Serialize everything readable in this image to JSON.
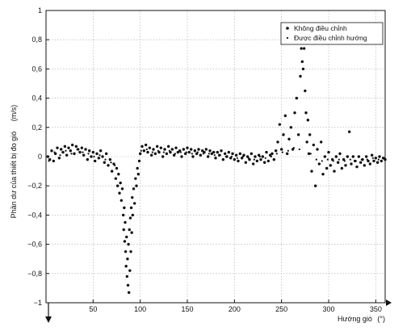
{
  "chart_data": {
    "type": "scatter",
    "xlabel": "Hướng gió",
    "xunit": "(°)",
    "ylabel": "Phần dư của thiết bị đo gió",
    "yunit": "(m/s)",
    "xlim": [
      0,
      360
    ],
    "ylim": [
      -1,
      1
    ],
    "xticks": [
      50,
      100,
      150,
      200,
      250,
      300,
      350
    ],
    "xtick_labels": [
      "50",
      "100",
      "150",
      "200",
      "250",
      "300",
      "350"
    ],
    "yticks": [
      -1,
      -0.8,
      -0.6,
      -0.4,
      -0.2,
      0,
      0.2,
      0.4,
      0.6,
      0.8,
      1
    ],
    "ytick_labels": [
      "−1",
      "−0,8",
      "−0,6",
      "−0,4",
      "−0,2",
      "0",
      "0,2",
      "0,4",
      "0,6",
      "0,8",
      "1"
    ],
    "grid": true,
    "legend_position": "top-right",
    "colors": {
      "points": "#111111",
      "grid": "#aaaaaa",
      "axes": "#111111"
    },
    "series": [
      {
        "name": "Không điều chỉnh",
        "marker": "dot",
        "points": [
          [
            2,
            0.0
          ],
          [
            4,
            -0.02
          ],
          [
            6,
            0.04
          ],
          [
            8,
            -0.03
          ],
          [
            10,
            0.02
          ],
          [
            12,
            0.06
          ],
          [
            14,
            -0.01
          ],
          [
            16,
            0.05
          ],
          [
            18,
            0.03
          ],
          [
            20,
            0.07
          ],
          [
            22,
            0.01
          ],
          [
            24,
            0.06
          ],
          [
            26,
            0.04
          ],
          [
            28,
            0.08
          ],
          [
            30,
            0.02
          ],
          [
            32,
            0.07
          ],
          [
            34,
            0.05
          ],
          [
            36,
            0.03
          ],
          [
            38,
            0.06
          ],
          [
            40,
            0.01
          ],
          [
            42,
            0.05
          ],
          [
            44,
            -0.02
          ],
          [
            46,
            0.04
          ],
          [
            48,
            0.0
          ],
          [
            50,
            0.03
          ],
          [
            52,
            -0.03
          ],
          [
            54,
            0.02
          ],
          [
            56,
            -0.01
          ],
          [
            58,
            0.04
          ],
          [
            60,
            0.0
          ],
          [
            62,
            -0.04
          ],
          [
            64,
            0.02
          ],
          [
            66,
            -0.06
          ],
          [
            68,
            -0.02
          ],
          [
            70,
            -0.1
          ],
          [
            72,
            -0.05
          ],
          [
            74,
            -0.15
          ],
          [
            75,
            -0.08
          ],
          [
            76,
            -0.2
          ],
          [
            77,
            -0.12
          ],
          [
            78,
            -0.25
          ],
          [
            79,
            -0.18
          ],
          [
            80,
            -0.3
          ],
          [
            81,
            -0.22
          ],
          [
            82,
            -0.4
          ],
          [
            82.5,
            -0.5
          ],
          [
            83,
            -0.35
          ],
          [
            83.5,
            -0.58
          ],
          [
            84,
            -0.45
          ],
          [
            84.5,
            -0.65
          ],
          [
            85,
            -0.75
          ],
          [
            85.5,
            -0.55
          ],
          [
            86,
            -0.82
          ],
          [
            86.5,
            -0.7
          ],
          [
            87,
            -0.88
          ],
          [
            87.5,
            -0.6
          ],
          [
            88,
            -0.93
          ],
          [
            88.5,
            -0.5
          ],
          [
            89,
            -0.78
          ],
          [
            89.5,
            -0.42
          ],
          [
            90,
            -0.65
          ],
          [
            90.5,
            -0.35
          ],
          [
            91,
            -0.52
          ],
          [
            91.5,
            -0.28
          ],
          [
            92,
            -0.4
          ],
          [
            93,
            -0.22
          ],
          [
            94,
            -0.32
          ],
          [
            95,
            -0.15
          ],
          [
            96,
            -0.2
          ],
          [
            97,
            -0.08
          ],
          [
            98,
            -0.12
          ],
          [
            99,
            -0.03
          ],
          [
            100,
            0.02
          ],
          [
            102,
            0.07
          ],
          [
            104,
            0.04
          ],
          [
            106,
            0.08
          ],
          [
            108,
            0.03
          ],
          [
            110,
            0.06
          ],
          [
            112,
            0.01
          ],
          [
            114,
            0.05
          ],
          [
            116,
            0.02
          ],
          [
            118,
            0.07
          ],
          [
            120,
            0.03
          ],
          [
            122,
            0.06
          ],
          [
            124,
            0.0
          ],
          [
            126,
            0.05
          ],
          [
            128,
            0.02
          ],
          [
            130,
            0.07
          ],
          [
            132,
            0.03
          ],
          [
            134,
            0.05
          ],
          [
            136,
            0.01
          ],
          [
            138,
            0.06
          ],
          [
            140,
            0.03
          ],
          [
            142,
            0.04
          ],
          [
            144,
            0.0
          ],
          [
            146,
            0.05
          ],
          [
            148,
            0.02
          ],
          [
            150,
            0.06
          ],
          [
            152,
            0.03
          ],
          [
            154,
            0.05
          ],
          [
            156,
            0.0
          ],
          [
            158,
            0.04
          ],
          [
            160,
            0.02
          ],
          [
            162,
            0.05
          ],
          [
            164,
            0.01
          ],
          [
            166,
            0.04
          ],
          [
            168,
            0.03
          ],
          [
            170,
            0.05
          ],
          [
            172,
            0.0
          ],
          [
            174,
            0.04
          ],
          [
            176,
            0.02
          ],
          [
            178,
            0.03
          ],
          [
            180,
            -0.01
          ],
          [
            182,
            0.03
          ],
          [
            184,
            0.01
          ],
          [
            186,
            0.04
          ],
          [
            188,
            -0.02
          ],
          [
            190,
            0.02
          ],
          [
            192,
            0.0
          ],
          [
            194,
            0.03
          ],
          [
            196,
            -0.01
          ],
          [
            198,
            0.02
          ],
          [
            200,
            -0.02
          ],
          [
            202,
            0.01
          ],
          [
            204,
            -0.03
          ],
          [
            206,
            0.02
          ],
          [
            208,
            -0.01
          ],
          [
            210,
            0.01
          ],
          [
            212,
            -0.04
          ],
          [
            214,
            0.0
          ],
          [
            216,
            -0.02
          ],
          [
            218,
            0.02
          ],
          [
            220,
            -0.05
          ],
          [
            222,
            0.0
          ],
          [
            224,
            -0.03
          ],
          [
            226,
            0.01
          ],
          [
            228,
            -0.02
          ],
          [
            230,
            0.0
          ],
          [
            232,
            -0.04
          ],
          [
            234,
            0.03
          ],
          [
            236,
            -0.03
          ],
          [
            238,
            0.01
          ],
          [
            240,
            0.02
          ],
          [
            242,
            -0.02
          ],
          [
            244,
            0.04
          ],
          [
            246,
            0.1
          ],
          [
            248,
            0.22
          ],
          [
            250,
            0.05
          ],
          [
            252,
            0.15
          ],
          [
            254,
            0.28
          ],
          [
            256,
            0.02
          ],
          [
            258,
            0.12
          ],
          [
            260,
            0.2
          ],
          [
            262,
            0.05
          ],
          [
            264,
            0.3
          ],
          [
            266,
            0.4
          ],
          [
            268,
            0.15
          ],
          [
            270,
            0.55
          ],
          [
            271,
            0.74
          ],
          [
            272,
            0.65
          ],
          [
            273,
            0.6
          ],
          [
            274,
            0.74
          ],
          [
            275,
            0.45
          ],
          [
            276,
            0.3
          ],
          [
            277,
            0.1
          ],
          [
            278,
            0.25
          ],
          [
            279,
            0.02
          ],
          [
            280,
            0.15
          ],
          [
            282,
            -0.1
          ],
          [
            284,
            0.08
          ],
          [
            286,
            -0.2
          ],
          [
            288,
            0.05
          ],
          [
            290,
            -0.05
          ],
          [
            292,
            0.1
          ],
          [
            294,
            -0.12
          ],
          [
            296,
            0.0
          ],
          [
            298,
            -0.08
          ],
          [
            300,
            0.03
          ],
          [
            302,
            -0.06
          ],
          [
            304,
            -0.02
          ],
          [
            306,
            -0.1
          ],
          [
            308,
            0.0
          ],
          [
            310,
            -0.04
          ],
          [
            312,
            0.02
          ],
          [
            314,
            -0.08
          ],
          [
            316,
            -0.02
          ],
          [
            318,
            -0.06
          ],
          [
            320,
            0.0
          ],
          [
            322,
            0.17
          ],
          [
            324,
            -0.05
          ],
          [
            326,
            0.0
          ],
          [
            328,
            -0.03
          ],
          [
            330,
            -0.07
          ],
          [
            332,
            0.0
          ],
          [
            334,
            -0.04
          ],
          [
            336,
            -0.02
          ],
          [
            338,
            -0.06
          ],
          [
            340,
            0.0
          ],
          [
            342,
            -0.03
          ],
          [
            344,
            -0.05
          ],
          [
            346,
            0.01
          ],
          [
            348,
            -0.03
          ],
          [
            350,
            -0.01
          ],
          [
            352,
            -0.04
          ],
          [
            354,
            0.0
          ],
          [
            356,
            -0.03
          ],
          [
            358,
            -0.01
          ],
          [
            360,
            -0.02
          ]
        ]
      },
      {
        "name": "Được điều chỉnh hướng",
        "marker": "small-dot",
        "points": [
          [
            3,
            -0.03
          ],
          [
            9,
            0.03
          ],
          [
            15,
            0.01
          ],
          [
            21,
            0.04
          ],
          [
            27,
            0.02
          ],
          [
            33,
            0.05
          ],
          [
            39,
            0.03
          ],
          [
            45,
            0.02
          ],
          [
            51,
            0.0
          ],
          [
            57,
            0.01
          ],
          [
            63,
            -0.02
          ],
          [
            69,
            -0.04
          ],
          [
            73,
            -0.06
          ],
          [
            101,
            0.04
          ],
          [
            107,
            0.05
          ],
          [
            113,
            0.03
          ],
          [
            119,
            0.04
          ],
          [
            125,
            0.03
          ],
          [
            131,
            0.04
          ],
          [
            137,
            0.02
          ],
          [
            143,
            0.03
          ],
          [
            149,
            0.03
          ],
          [
            155,
            0.02
          ],
          [
            161,
            0.03
          ],
          [
            167,
            0.02
          ],
          [
            173,
            0.02
          ],
          [
            179,
            0.01
          ],
          [
            185,
            0.01
          ],
          [
            191,
            0.0
          ],
          [
            197,
            0.0
          ],
          [
            203,
            -0.01
          ],
          [
            209,
            0.0
          ],
          [
            215,
            -0.01
          ],
          [
            221,
            -0.02
          ],
          [
            227,
            0.0
          ],
          [
            233,
            -0.01
          ],
          [
            239,
            0.0
          ],
          [
            245,
            0.02
          ],
          [
            251,
            0.03
          ],
          [
            257,
            0.04
          ],
          [
            263,
            0.06
          ],
          [
            269,
            0.05
          ],
          [
            281,
            0.02
          ],
          [
            287,
            -0.02
          ],
          [
            293,
            -0.03
          ],
          [
            299,
            -0.02
          ],
          [
            305,
            -0.03
          ],
          [
            311,
            -0.02
          ],
          [
            317,
            -0.03
          ],
          [
            323,
            -0.02
          ],
          [
            329,
            -0.03
          ],
          [
            335,
            -0.02
          ],
          [
            341,
            -0.02
          ],
          [
            347,
            -0.01
          ],
          [
            353,
            -0.02
          ],
          [
            359,
            -0.01
          ]
        ]
      }
    ]
  }
}
